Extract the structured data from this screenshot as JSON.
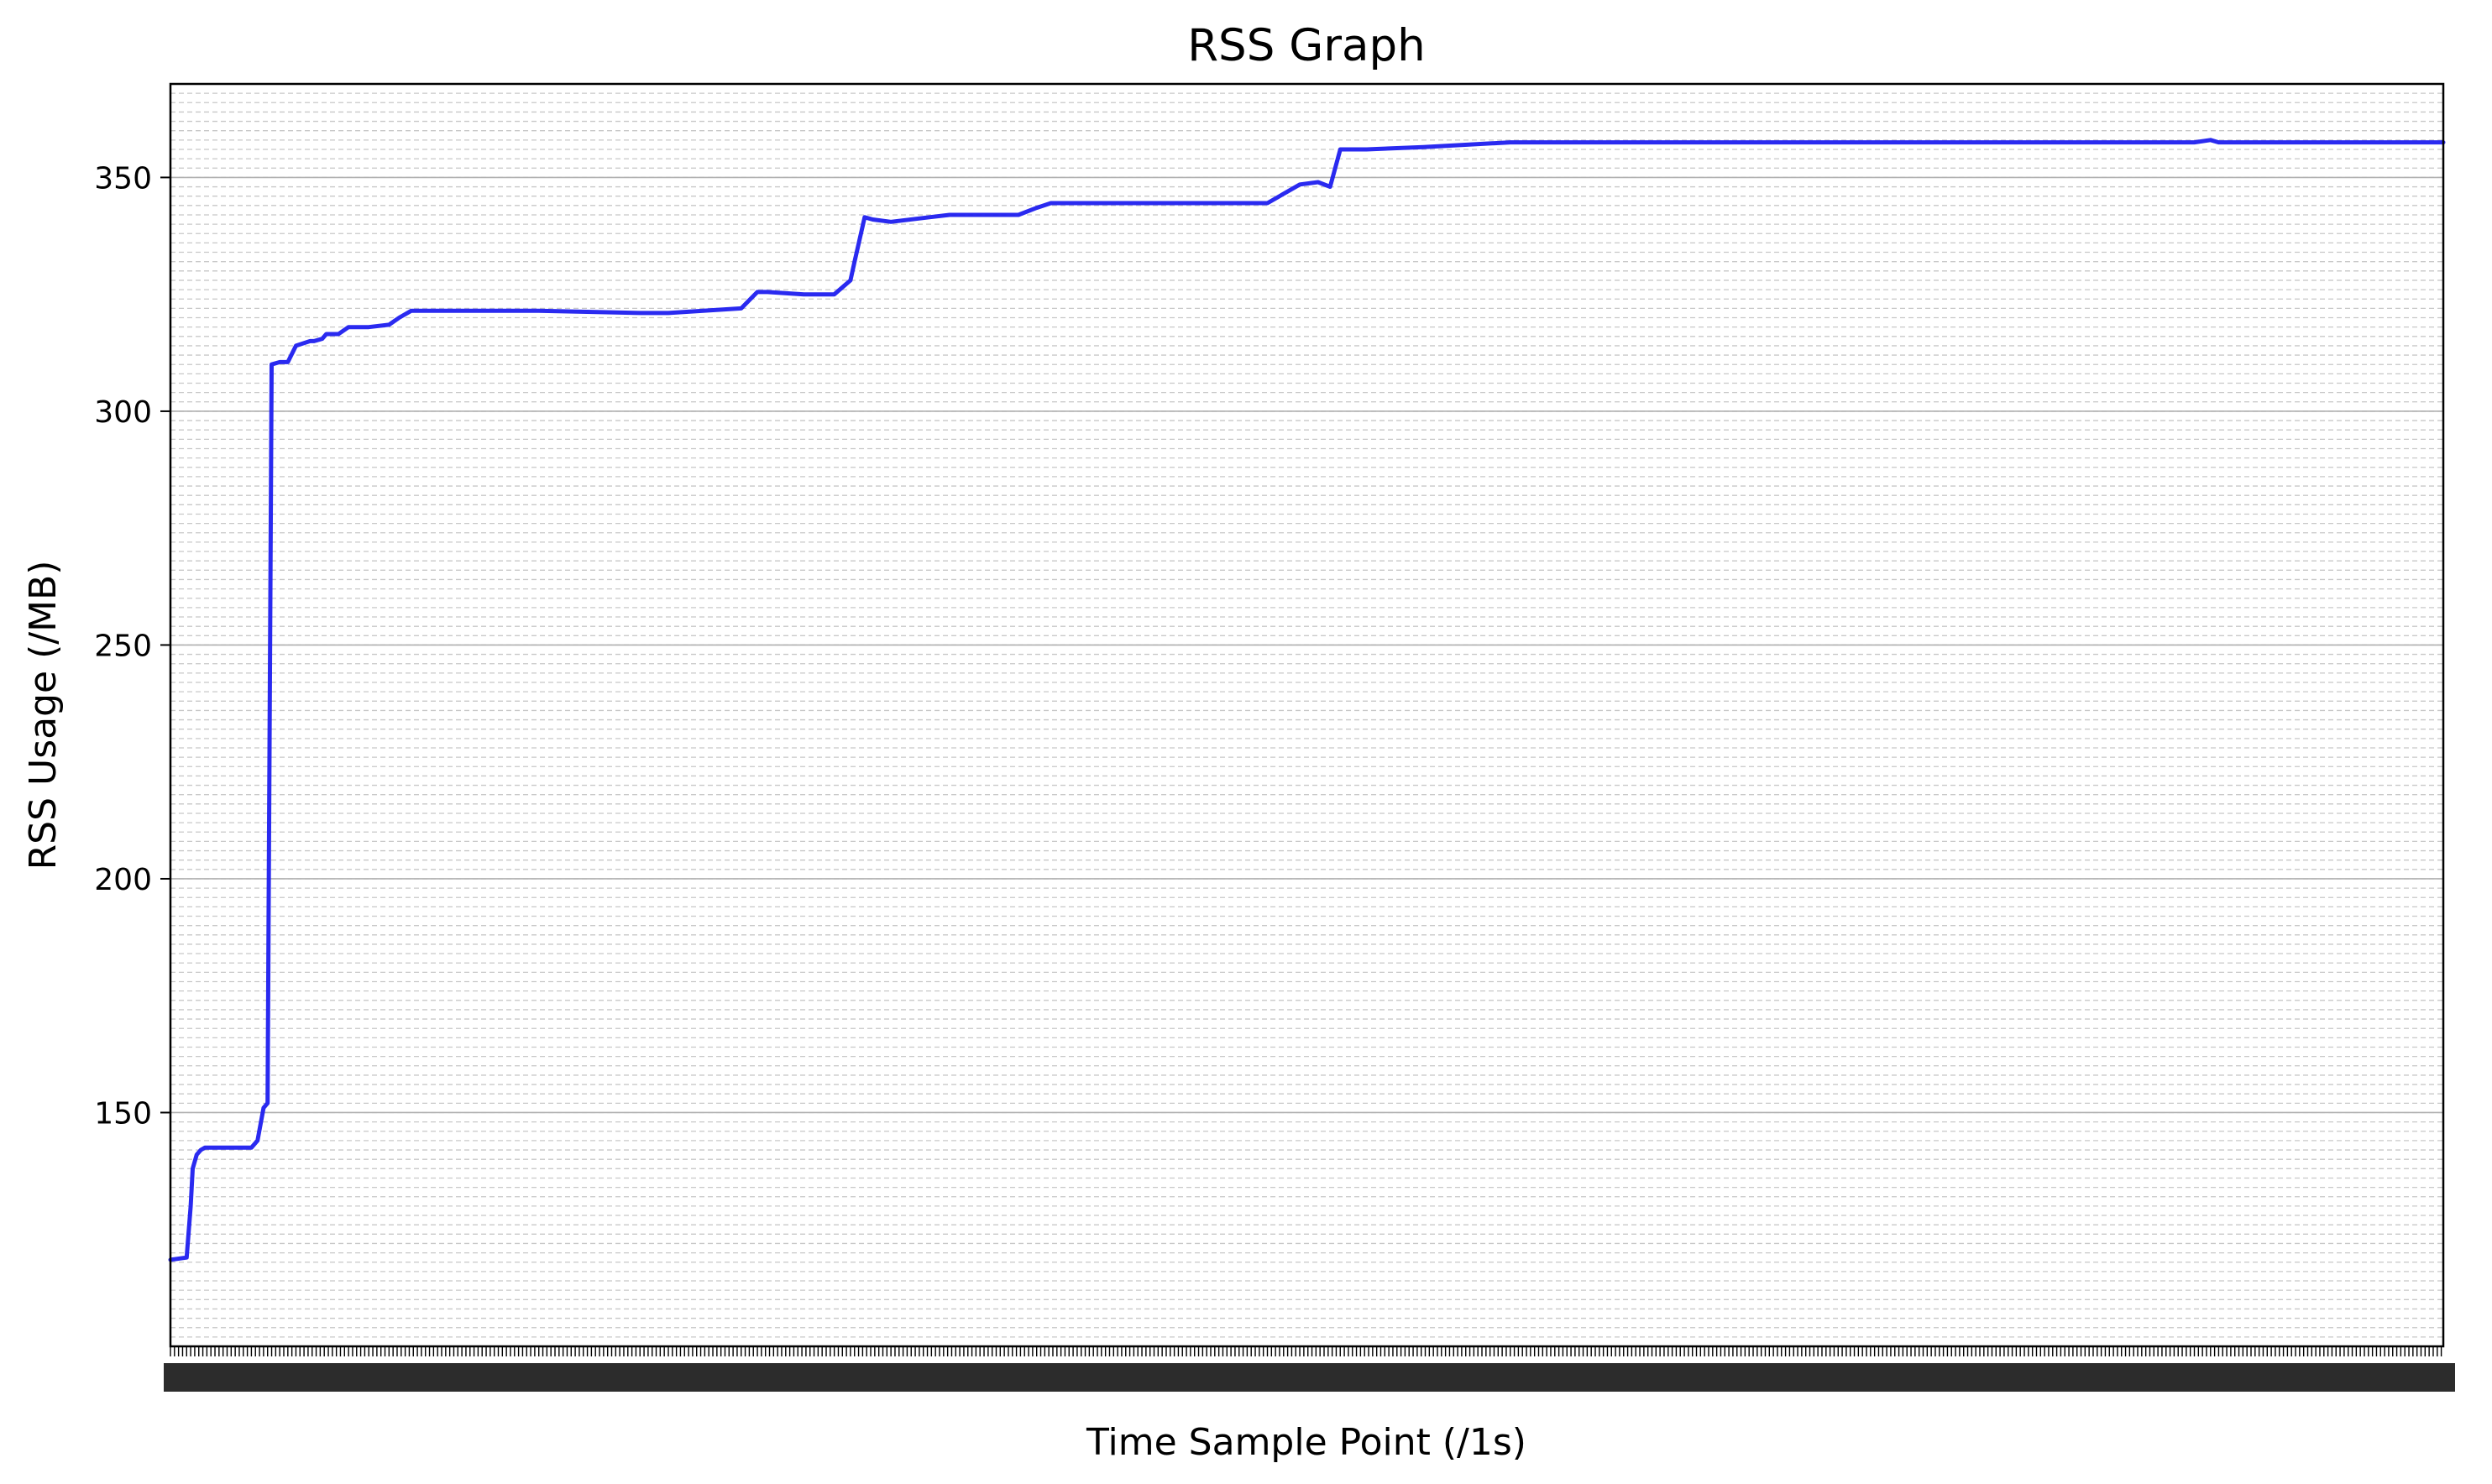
{
  "chart_data": {
    "type": "line",
    "title": "RSS Graph",
    "xlabel": "Time Sample Point (/1s)",
    "ylabel": "RSS Usage (/MB)",
    "xlim": [
      0,
      1123
    ],
    "ylim": [
      100,
      370
    ],
    "y_ticks": [
      150,
      200,
      250,
      300,
      350
    ],
    "x_tick_labels": "one overlapping integer label per sample point 0–1123 (illegible)",
    "grid": true,
    "legend": "none",
    "colors": {
      "line": "#1f1fef",
      "grid": "#c8c8c8",
      "axes": "#000000"
    },
    "series": [
      {
        "x": [
          0,
          8,
          10,
          11,
          13,
          15,
          17,
          40,
          43,
          46,
          48,
          50,
          54,
          58,
          62,
          69,
          71,
          75,
          77,
          83,
          88,
          98,
          108,
          113,
          119,
          134,
          167,
          182,
          232,
          246,
          282,
          290,
          295,
          313,
          318,
          321,
          328,
          336,
          338,
          343,
          347,
          356,
          375,
          385,
          419,
          428,
          435,
          458,
          516,
          538,
          542,
          558,
          567,
          573,
          578,
          591,
          619,
          662,
          1000,
          1008,
          1012,
          1050,
          1123
        ],
        "y": [
          118.5,
          119,
          130,
          138,
          141,
          142,
          142.5,
          142.5,
          144,
          151,
          152,
          310,
          310.5,
          310.5,
          314,
          315,
          315,
          315.5,
          316.5,
          316.5,
          318,
          318,
          318.5,
          320,
          321.5,
          321.5,
          321.5,
          321.5,
          321,
          321,
          322,
          325.5,
          325.5,
          325,
          325,
          325,
          325,
          328,
          332,
          341.5,
          341,
          340.5,
          341.5,
          342,
          342,
          343.5,
          344.5,
          344.5,
          344.5,
          344.5,
          344.5,
          348.5,
          349,
          348,
          356,
          356,
          356.5,
          357.5,
          357.5,
          358,
          357.5,
          357.5,
          357.5
        ]
      }
    ]
  }
}
